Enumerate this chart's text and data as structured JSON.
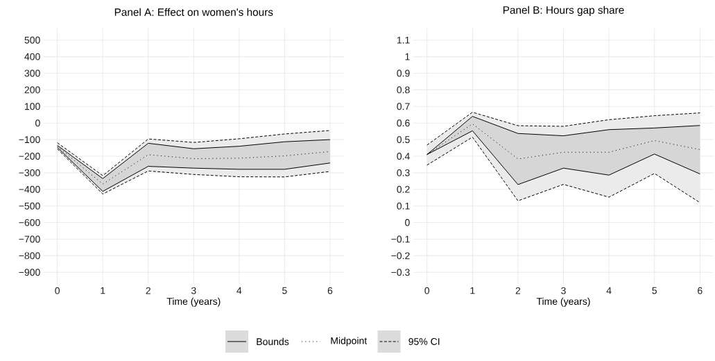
{
  "chart_data": [
    {
      "type": "line",
      "title": "Panel A: Effect on women's hours",
      "xlabel": "Time (years)",
      "x": [
        0,
        1,
        2,
        3,
        4,
        5,
        6
      ],
      "xlim": [
        -0.3,
        6.3
      ],
      "xticks": [
        0,
        1,
        2,
        3,
        4,
        5,
        6
      ],
      "ylim": [
        -970,
        570
      ],
      "yticks": [
        500,
        400,
        300,
        200,
        100,
        0,
        {
          "value": -100,
          "label": "−100"
        },
        {
          "value": -200,
          "label": "−200"
        },
        {
          "value": -300,
          "label": "−300"
        },
        {
          "value": -400,
          "label": "−400"
        },
        {
          "value": -500,
          "label": "−500"
        },
        {
          "value": -600,
          "label": "−600"
        },
        {
          "value": -700,
          "label": "−700"
        },
        {
          "value": -800,
          "label": "−800"
        },
        {
          "value": -900,
          "label": "−900"
        }
      ],
      "grid": true,
      "legend": "bottom",
      "series": [
        {
          "name": "Bounds",
          "color": "#000000",
          "line_style": "solid",
          "values": [
            -135,
            -335,
            -122,
            -155,
            -140,
            -113,
            -100
          ]
        },
        {
          "color": "#000000",
          "line_style": "solid",
          "values": [
            -147,
            -412,
            -261,
            -272,
            -279,
            -279,
            -241
          ]
        },
        {
          "name": "Midpoint",
          "color": "#000000",
          "line_style": "dotted",
          "values": [
            -141,
            -368,
            -191,
            -215,
            -212,
            -198,
            -172
          ],
          "lower": [
            -147,
            -412,
            -261,
            -272,
            -279,
            -279,
            -241
          ],
          "upper": [
            -135,
            -335,
            -122,
            -155,
            -140,
            -113,
            -100
          ]
        },
        {
          "name": "95% CI",
          "color": "#000000",
          "line_style": "dashed",
          "values": [
            -119,
            -317,
            -96,
            -117,
            -95,
            -66,
            -45
          ],
          "lower": [
            -156,
            -428,
            -289,
            -310,
            -324,
            -325,
            -292
          ],
          "upper": [
            -119,
            -317,
            -96,
            -117,
            -95,
            -66,
            -45
          ]
        },
        {
          "color": "#000000",
          "line_style": "dashed",
          "values": [
            -156,
            -428,
            -289,
            -310,
            -324,
            -325,
            -292
          ]
        }
      ]
    },
    {
      "type": "line",
      "title": "Panel B: Hours gap share",
      "xlabel": "Time (years)",
      "x": [
        0,
        1,
        2,
        3,
        4,
        5,
        6
      ],
      "xlim": [
        -0.3,
        6.3
      ],
      "xticks": [
        0,
        1,
        2,
        3,
        4,
        5,
        6
      ],
      "ylim": [
        -0.37,
        1.17
      ],
      "yticks": [
        1.1,
        1,
        0.9,
        0.8,
        0.7,
        0.6,
        0.5,
        0.4,
        0.3,
        0.2,
        0.1,
        0,
        {
          "value": -0.1,
          "label": "−0.1"
        },
        {
          "value": -0.2,
          "label": "−0.2"
        },
        {
          "value": -0.3,
          "label": "−0.3"
        }
      ],
      "grid": true,
      "series": [
        {
          "color": "#000000",
          "line_style": "solid",
          "values": [
            0.41,
            0.64,
            0.537,
            0.523,
            0.56,
            0.57,
            0.585
          ]
        },
        {
          "color": "#000000",
          "line_style": "solid",
          "values": [
            0.41,
            0.553,
            0.229,
            0.328,
            0.286,
            0.413,
            0.293
          ]
        },
        {
          "color": "#000000",
          "line_style": "dotted",
          "values": [
            0.41,
            0.595,
            0.383,
            0.424,
            0.424,
            0.494,
            0.44
          ],
          "lower": [
            0.41,
            0.553,
            0.229,
            0.328,
            0.286,
            0.413,
            0.293
          ],
          "upper": [
            0.41,
            0.64,
            0.537,
            0.523,
            0.56,
            0.57,
            0.585
          ]
        },
        {
          "color": "#000000",
          "line_style": "dashed",
          "values": [
            0.467,
            0.665,
            0.584,
            0.58,
            0.62,
            0.644,
            0.661
          ],
          "lower": [
            0.346,
            0.515,
            0.131,
            0.23,
            0.153,
            0.296,
            0.12
          ],
          "upper": [
            0.467,
            0.665,
            0.584,
            0.58,
            0.62,
            0.644,
            0.661
          ]
        },
        {
          "color": "#000000",
          "line_style": "dashed",
          "values": [
            0.346,
            0.515,
            0.131,
            0.23,
            0.153,
            0.296,
            0.12
          ]
        }
      ]
    }
  ]
}
